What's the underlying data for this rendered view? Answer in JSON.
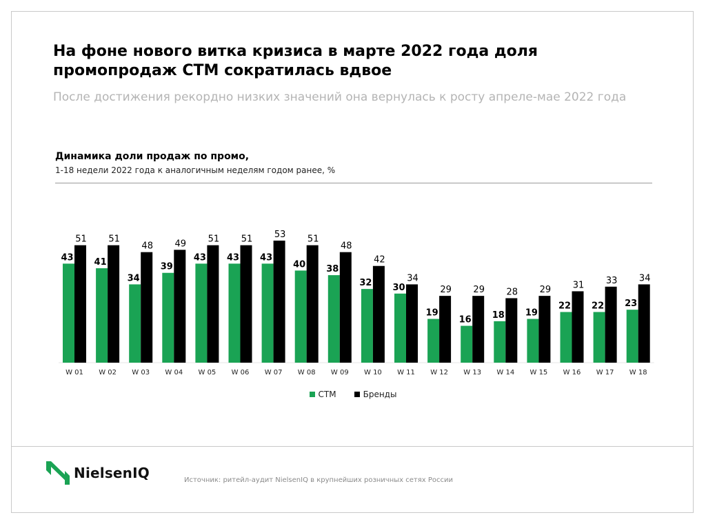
{
  "header": {
    "title": "На фоне нового витка кризиса в марте 2022 года доля промопродаж СТМ сократилась вдвое",
    "subtitle": "После достижения рекордно низких значений она вернулась к росту апреле-мае 2022 года"
  },
  "chart_data": {
    "type": "bar",
    "title": "Динамика доли продаж по промо,",
    "subtitle": "1-18 недели 2022 года к аналогичным неделям годом ранее, %",
    "categories": [
      "W 01",
      "W 02",
      "W 03",
      "W 04",
      "W 05",
      "W 06",
      "W 07",
      "W 08",
      "W 09",
      "W 10",
      "W 11",
      "W 12",
      "W 13",
      "W 14",
      "W 15",
      "W 16",
      "W 17",
      "W 18"
    ],
    "series": [
      {
        "name": "СТМ",
        "color": "#1aa354",
        "label_bold": true,
        "values": [
          43,
          41,
          34,
          39,
          43,
          43,
          43,
          40,
          38,
          32,
          30,
          19,
          16,
          18,
          19,
          22,
          22,
          23
        ]
      },
      {
        "name": "Бренды",
        "color": "#000000",
        "label_bold": false,
        "values": [
          51,
          51,
          48,
          49,
          51,
          51,
          53,
          51,
          48,
          42,
          34,
          29,
          29,
          28,
          29,
          31,
          33,
          34
        ]
      }
    ],
    "ylim": [
      0,
      53
    ],
    "grid": false,
    "legend_position": "bottom-center"
  },
  "legend": {
    "items": [
      {
        "label": "СТМ",
        "color": "#1aa354"
      },
      {
        "label": "Бренды",
        "color": "#000000"
      }
    ]
  },
  "footer": {
    "logo_text": "NielsenIQ",
    "logo_color": "#1aa354",
    "source": "Источник: ритейл-аудит NielsenIQ в крупнейших розничных сетях России"
  }
}
